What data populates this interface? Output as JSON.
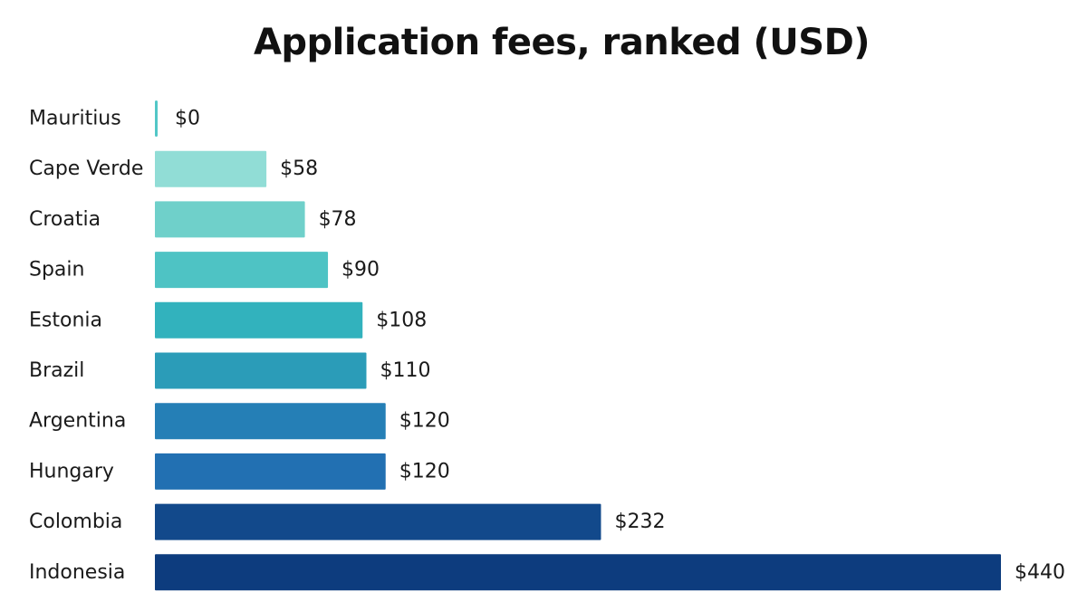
{
  "chart_data": {
    "type": "bar",
    "orientation": "horizontal",
    "title": "Application fees, ranked (USD)",
    "categories": [
      "Mauritius",
      "Cape Verde",
      "Croatia",
      "Spain",
      "Estonia",
      "Brazil",
      "Argentina",
      "Hungary",
      "Colombia",
      "Indonesia"
    ],
    "values": [
      0,
      58,
      78,
      90,
      108,
      110,
      120,
      120,
      232,
      440
    ],
    "value_labels": [
      "$0",
      "$58",
      "$78",
      "$90",
      "$108",
      "$110",
      "$120",
      "$120",
      "$232",
      "$440"
    ],
    "xlim": [
      0,
      440
    ],
    "grid": false,
    "legend": "none",
    "colors": [
      "#52c7c7",
      "#91ddd6",
      "#6fd0ca",
      "#4ec3c4",
      "#32b2bd",
      "#2b9cb8",
      "#257fb6",
      "#2270b2",
      "#12498b",
      "#0d3c7e"
    ]
  }
}
